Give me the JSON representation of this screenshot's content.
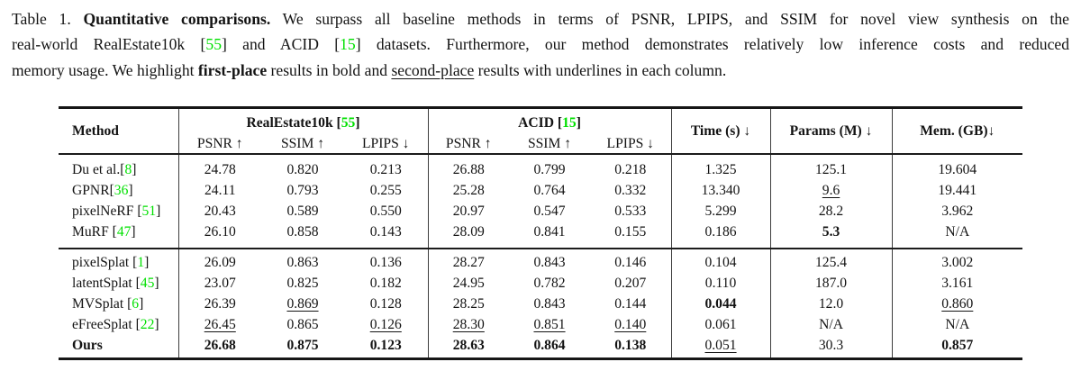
{
  "colors": {
    "citation_green": "#00e000",
    "text": "#131313"
  },
  "caption": {
    "lines": [
      [
        {
          "t": "Table 1. "
        },
        {
          "t": "Quantitative comparisons.",
          "b": 1
        },
        {
          "t": " We surpass all baseline methods in terms of PSNR, LPIPS, and SSIM for novel view synthesis on the"
        }
      ],
      [
        {
          "t": "real-world RealEstate10k ["
        },
        {
          "t": "55",
          "g": 1
        },
        {
          "t": "] and ACID ["
        },
        {
          "t": "15",
          "g": 1
        },
        {
          "t": "] datasets. Furthermore, our method demonstrates relatively low inference costs and reduced"
        }
      ],
      [
        {
          "t": "memory usage. We highlight "
        },
        {
          "t": "first-place",
          "b": 1
        },
        {
          "t": " results in bold and "
        },
        {
          "t": "second-place",
          "u": 1
        },
        {
          "t": " results with underlines in each column."
        }
      ]
    ]
  },
  "table": {
    "method_header": "Method",
    "dataset_groups": [
      {
        "name": "realestate10k",
        "title_segments": [
          {
            "t": "RealEstate10k [",
            "b": 1
          },
          {
            "t": "55",
            "b": 1,
            "g": 1
          },
          {
            "t": "]",
            "b": 1
          }
        ],
        "subcols": [
          "PSNR ↑",
          "SSIM ↑",
          "LPIPS ↓"
        ]
      },
      {
        "name": "acid",
        "title_segments": [
          {
            "t": "ACID [",
            "b": 1
          },
          {
            "t": "15",
            "b": 1,
            "g": 1
          },
          {
            "t": "]",
            "b": 1
          }
        ],
        "subcols": [
          "PSNR ↑",
          "SSIM ↑",
          "LPIPS ↓"
        ]
      }
    ],
    "scalar_headers": [
      "Time (s) ↓",
      "Params (M) ↓",
      "Mem. (GB)↓"
    ],
    "row_groups": [
      {
        "rows": [
          {
            "method": [
              {
                "t": "Du et al.["
              },
              {
                "t": "8",
                "g": 1
              },
              {
                "t": "]"
              }
            ],
            "cells": [
              {
                "v": "24.78"
              },
              {
                "v": "0.820"
              },
              {
                "v": "0.213"
              },
              {
                "v": "26.88"
              },
              {
                "v": "0.799"
              },
              {
                "v": "0.218"
              },
              {
                "v": "1.325"
              },
              {
                "v": "125.1"
              },
              {
                "v": "19.604"
              }
            ]
          },
          {
            "method": [
              {
                "t": "GPNR["
              },
              {
                "t": "36",
                "g": 1
              },
              {
                "t": "]"
              }
            ],
            "cells": [
              {
                "v": "24.11"
              },
              {
                "v": "0.793"
              },
              {
                "v": "0.255"
              },
              {
                "v": "25.28"
              },
              {
                "v": "0.764"
              },
              {
                "v": "0.332"
              },
              {
                "v": "13.340"
              },
              {
                "v": "9.6",
                "u": 1
              },
              {
                "v": "19.441"
              }
            ]
          },
          {
            "method": [
              {
                "t": "pixelNeRF ["
              },
              {
                "t": "51",
                "g": 1
              },
              {
                "t": "]"
              }
            ],
            "cells": [
              {
                "v": "20.43"
              },
              {
                "v": "0.589"
              },
              {
                "v": "0.550"
              },
              {
                "v": "20.97"
              },
              {
                "v": "0.547"
              },
              {
                "v": "0.533"
              },
              {
                "v": "5.299"
              },
              {
                "v": "28.2"
              },
              {
                "v": "3.962"
              }
            ]
          },
          {
            "method": [
              {
                "t": "MuRF ["
              },
              {
                "t": "47",
                "g": 1
              },
              {
                "t": "]"
              }
            ],
            "cells": [
              {
                "v": "26.10"
              },
              {
                "v": "0.858"
              },
              {
                "v": "0.143"
              },
              {
                "v": "28.09"
              },
              {
                "v": "0.841"
              },
              {
                "v": "0.155"
              },
              {
                "v": "0.186"
              },
              {
                "v": "5.3",
                "b": 1
              },
              {
                "v": "N/A"
              }
            ]
          }
        ]
      },
      {
        "rows": [
          {
            "method": [
              {
                "t": "pixelSplat ["
              },
              {
                "t": "1",
                "g": 1
              },
              {
                "t": "]"
              }
            ],
            "cells": [
              {
                "v": "26.09"
              },
              {
                "v": "0.863"
              },
              {
                "v": "0.136"
              },
              {
                "v": "28.27"
              },
              {
                "v": "0.843"
              },
              {
                "v": "0.146"
              },
              {
                "v": "0.104"
              },
              {
                "v": "125.4"
              },
              {
                "v": "3.002"
              }
            ]
          },
          {
            "method": [
              {
                "t": "latentSplat ["
              },
              {
                "t": "45",
                "g": 1
              },
              {
                "t": "]"
              }
            ],
            "cells": [
              {
                "v": "23.07"
              },
              {
                "v": "0.825"
              },
              {
                "v": "0.182"
              },
              {
                "v": "24.95"
              },
              {
                "v": "0.782"
              },
              {
                "v": "0.207"
              },
              {
                "v": "0.110"
              },
              {
                "v": "187.0"
              },
              {
                "v": "3.161"
              }
            ]
          },
          {
            "method": [
              {
                "t": "MVSplat ["
              },
              {
                "t": "6",
                "g": 1
              },
              {
                "t": "]"
              }
            ],
            "cells": [
              {
                "v": "26.39"
              },
              {
                "v": "0.869",
                "u": 1
              },
              {
                "v": "0.128"
              },
              {
                "v": "28.25"
              },
              {
                "v": "0.843"
              },
              {
                "v": "0.144"
              },
              {
                "v": "0.044",
                "b": 1
              },
              {
                "v": "12.0"
              },
              {
                "v": "0.860",
                "u": 1
              }
            ]
          },
          {
            "method": [
              {
                "t": "eFreeSplat ["
              },
              {
                "t": "22",
                "g": 1
              },
              {
                "t": "]"
              }
            ],
            "cells": [
              {
                "v": "26.45",
                "u": 1
              },
              {
                "v": "0.865"
              },
              {
                "v": "0.126",
                "u": 1
              },
              {
                "v": "28.30",
                "u": 1
              },
              {
                "v": "0.851",
                "u": 1
              },
              {
                "v": "0.140",
                "u": 1
              },
              {
                "v": "0.061"
              },
              {
                "v": "N/A"
              },
              {
                "v": "N/A"
              }
            ]
          },
          {
            "method": [
              {
                "t": "Ours",
                "b": 1
              }
            ],
            "cells": [
              {
                "v": "26.68",
                "b": 1
              },
              {
                "v": "0.875",
                "b": 1
              },
              {
                "v": "0.123",
                "b": 1
              },
              {
                "v": "28.63",
                "b": 1
              },
              {
                "v": "0.864",
                "b": 1
              },
              {
                "v": "0.138",
                "b": 1
              },
              {
                "v": "0.051",
                "u": 1
              },
              {
                "v": "30.3"
              },
              {
                "v": "0.857",
                "b": 1
              }
            ]
          }
        ]
      }
    ]
  }
}
